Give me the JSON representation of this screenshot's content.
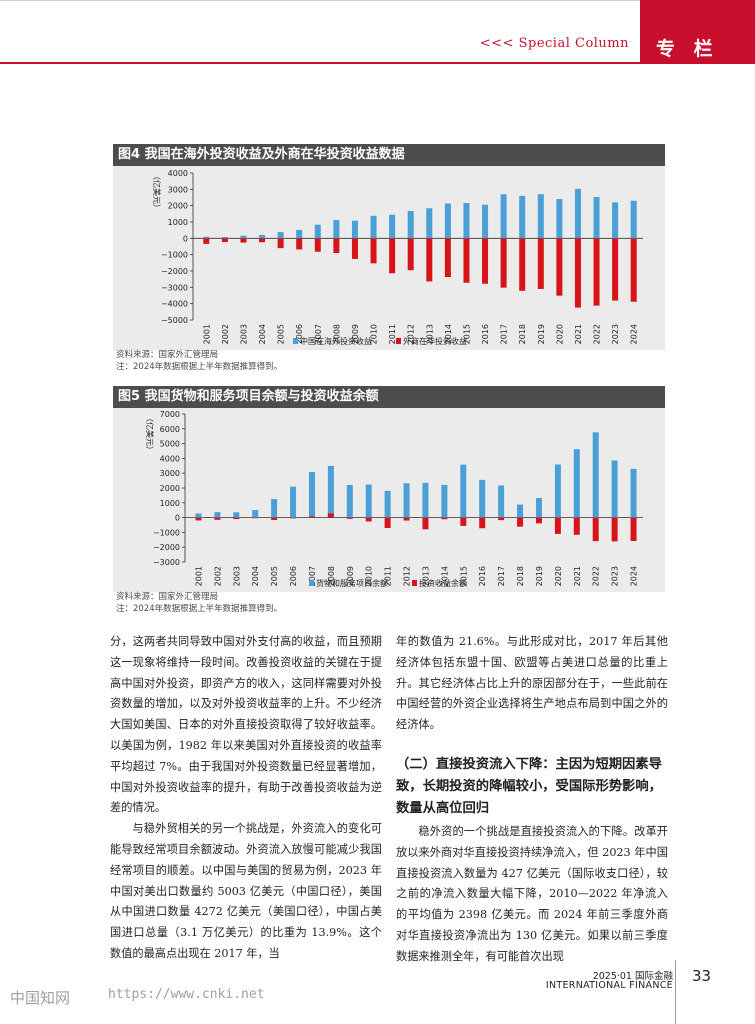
{
  "header": {
    "column_en": "<<< Special Column",
    "column_cn": "专 栏"
  },
  "figures": [
    {
      "title": "图4 我国在海外投资收益及外商在华投资收益数据",
      "source": "资料来源：国家外汇管理局",
      "note": "注：2024年数据根据上半年数据推算得到。",
      "y_label": "（亿美元）"
    },
    {
      "title": "图5 我国货物和服务项目余额与投资收益余额",
      "source": "资料来源：国家外汇管理局",
      "note": "注：2024年数据根据上半年数据推算得到。",
      "y_label": "（亿美元）"
    }
  ],
  "chart_data": [
    {
      "type": "bar",
      "title": "图4 我国在海外投资收益及外商在华投资收益数据",
      "ylabel": "（亿美元）",
      "ylim": [
        -5000,
        4000
      ],
      "yticks": [
        4000,
        3000,
        2000,
        1000,
        0,
        -1000,
        -2000,
        -3000,
        -4000,
        -5000
      ],
      "categories": [
        "2001",
        "2002",
        "2003",
        "2004",
        "2005",
        "2006",
        "2007",
        "2008",
        "2009",
        "2010",
        "2011",
        "2012",
        "2013",
        "2014",
        "2015",
        "2016",
        "2017",
        "2018",
        "2019",
        "2020",
        "2021",
        "2022",
        "2023",
        "2024"
      ],
      "series": [
        {
          "name": "中国在海外投资收益",
          "color": "#4a9fd6",
          "values": [
            95,
            82,
            161,
            206,
            382,
            516,
            835,
            1118,
            1083,
            1382,
            1443,
            1670,
            1840,
            2130,
            2160,
            2060,
            2700,
            2600,
            2700,
            2410,
            3030,
            2530,
            2200,
            2300
          ]
        },
        {
          "name": "外商在华投资收益",
          "color": "#d7141a",
          "values": [
            -340,
            -230,
            -260,
            -240,
            -600,
            -680,
            -820,
            -900,
            -1260,
            -1530,
            -2140,
            -1950,
            -2640,
            -2370,
            -2720,
            -2780,
            -3020,
            -3210,
            -3100,
            -3510,
            -4240,
            -4120,
            -3810,
            -3880
          ]
        }
      ],
      "legend": "bottom"
    },
    {
      "type": "bar",
      "title": "图5 我国货物和服务项目余额与投资收益余额",
      "ylabel": "（亿美元）",
      "ylim": [
        -3000,
        7000
      ],
      "yticks": [
        7000,
        6000,
        5000,
        4000,
        3000,
        2000,
        1000,
        0,
        -1000,
        -2000,
        -3000
      ],
      "categories": [
        "2001",
        "2002",
        "2003",
        "2004",
        "2005",
        "2006",
        "2007",
        "2008",
        "2009",
        "2010",
        "2011",
        "2012",
        "2013",
        "2014",
        "2015",
        "2016",
        "2017",
        "2018",
        "2019",
        "2020",
        "2021",
        "2022",
        "2023",
        "2024"
      ],
      "series": [
        {
          "name": "货物和服务项目余额",
          "color": "#4a9fd6",
          "values": [
            280,
            370,
            360,
            510,
            1250,
            2090,
            3080,
            3490,
            2200,
            2230,
            1810,
            2320,
            2350,
            2210,
            3580,
            2550,
            2170,
            880,
            1320,
            3590,
            4620,
            5760,
            3860,
            3290
          ]
        },
        {
          "name": "投资收益余额",
          "color": "#d7141a",
          "values": [
            -190,
            -150,
            -100,
            -30,
            -160,
            -51,
            80,
            286,
            -85,
            -259,
            -703,
            -199,
            -790,
            -110,
            -560,
            -720,
            -170,
            -610,
            -390,
            -1100,
            -1160,
            -1590,
            -1610,
            -1580
          ]
        }
      ],
      "legend": "bottom"
    }
  ],
  "body": {
    "left_paragraphs": [
      "分，这两者共同导致中国对外支付高的收益，而且预期这一现象将维持一段时间。改善投资收益的关键在于提高中国对外投资，即资产方的收入，这同样需要对外投资数量的增加，以及对外投资收益率的上升。不少经济大国如美国、日本的对外直接投资取得了较好收益率。以美国为例，1982 年以来美国对外直接投资的收益率平均超过 7%。由于我国对外投资数量已经显著增加，中国对外投资收益率的提升，有助于改善投资收益为逆差的情况。",
      "与稳外贸相关的另一个挑战是，外资流入的变化可能导致经常项目余额波动。外资流入放慢可能减少我国经常项目的顺差。以中国与美国的贸易为例，2023 年中国对美出口数量约 5003 亿美元（中国口径），美国从中国进口数量 4272 亿美元（美国口径），中国占美国进口总量（3.1 万亿美元）的比重为 13.9%。这个数值的最高点出现在 2017 年，当"
    ],
    "right_paragraph_1": "年的数值为 21.6%。与此形成对比，2017 年后其他经济体包括东盟十国、欧盟等占美进口总量的比重上升。其它经济体占比上升的原因部分在于，一些此前在中国经营的外资企业选择将生产地点布局到中国之外的经济体。",
    "section_heading": "（二）直接投资流入下降：主因为短期因素导致，长期投资的降幅较小，受国际形势影响，数量从高位回归",
    "right_paragraph_2": "稳外资的一个挑战是直接投资流入的下降。改革开放以来外商对华直接投资持续净流入，但 2023 年中国直接投资流入数量为 427 亿美元（国际收支口径），较之前的净流入数量大幅下降，2010—2022 年净流入的平均值为 2398 亿美元。而 2024 年前三季度外商对华直接投资净流出为 130 亿美元。如果以前三季度数据来推测全年，有可能首次出现"
  },
  "footer": {
    "issue": "2025·01 国际金融",
    "journal_en": "INTERNATIONAL FINANCE",
    "page": "33",
    "watermark_cn": "中国知网",
    "watermark_url": "https://www.cnki.net"
  }
}
